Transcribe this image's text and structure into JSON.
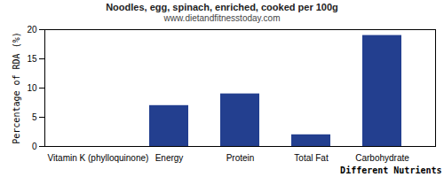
{
  "chart_data": {
    "type": "bar",
    "title": "Noodles, egg, spinach, enriched, cooked per 100g",
    "subtitle": "www.dietandfitnesstoday.com",
    "x_label": "Different Nutrients",
    "y_label": "Percentage of RDA (%)",
    "categories": [
      "Vitamin K (phylloquinone)",
      "Energy",
      "Protein",
      "Total Fat",
      "Carbohydrate"
    ],
    "values": [
      0,
      7,
      9,
      2,
      19
    ],
    "color": "#233f8f",
    "ylim": [
      0,
      20
    ],
    "yticks": [
      0,
      5,
      10,
      15,
      20
    ],
    "grid": false
  }
}
